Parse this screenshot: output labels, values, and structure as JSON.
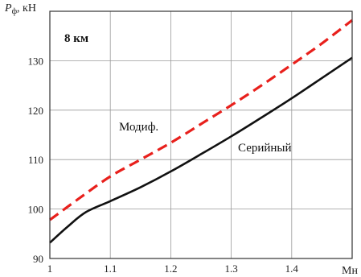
{
  "chart_data": {
    "type": "line",
    "title": "",
    "annotation": "8 км",
    "ylabel": {
      "symbol": "P",
      "subscript": "ф",
      "unit": ", кН"
    },
    "xlabel": "Мн",
    "xlim": [
      1.0,
      1.5
    ],
    "ylim": [
      90,
      140
    ],
    "x_ticks": [
      1.0,
      1.1,
      1.2,
      1.3,
      1.4
    ],
    "x_tick_labels": [
      "1",
      "1.1",
      "1.2",
      "1.3",
      "1.4"
    ],
    "y_ticks": [
      90,
      100,
      110,
      120,
      130
    ],
    "y_tick_labels": [
      "90",
      "100",
      "110",
      "120",
      "130"
    ],
    "grid": true,
    "legend": "none",
    "series": [
      {
        "name": "Модиф.",
        "color": "#e8201c",
        "style": "dashed",
        "x": [
          1.0,
          1.05,
          1.1,
          1.15,
          1.2,
          1.25,
          1.3,
          1.35,
          1.4,
          1.45,
          1.5
        ],
        "y": [
          97.8,
          102.3,
          106.6,
          110.0,
          113.4,
          117.2,
          121.0,
          125.0,
          129.2,
          133.5,
          138.2
        ]
      },
      {
        "name": "Серийный",
        "color": "#111111",
        "style": "solid",
        "x": [
          1.0,
          1.03,
          1.06,
          1.1,
          1.15,
          1.2,
          1.25,
          1.3,
          1.35,
          1.4,
          1.45,
          1.5
        ],
        "y": [
          93.2,
          96.5,
          99.4,
          101.6,
          104.4,
          107.6,
          111.1,
          114.7,
          118.5,
          122.4,
          126.5,
          130.6
        ]
      }
    ],
    "series_labels": [
      {
        "text": "Модиф.",
        "series": "Модиф."
      },
      {
        "text": "Серийный",
        "series": "Серийный"
      }
    ]
  }
}
